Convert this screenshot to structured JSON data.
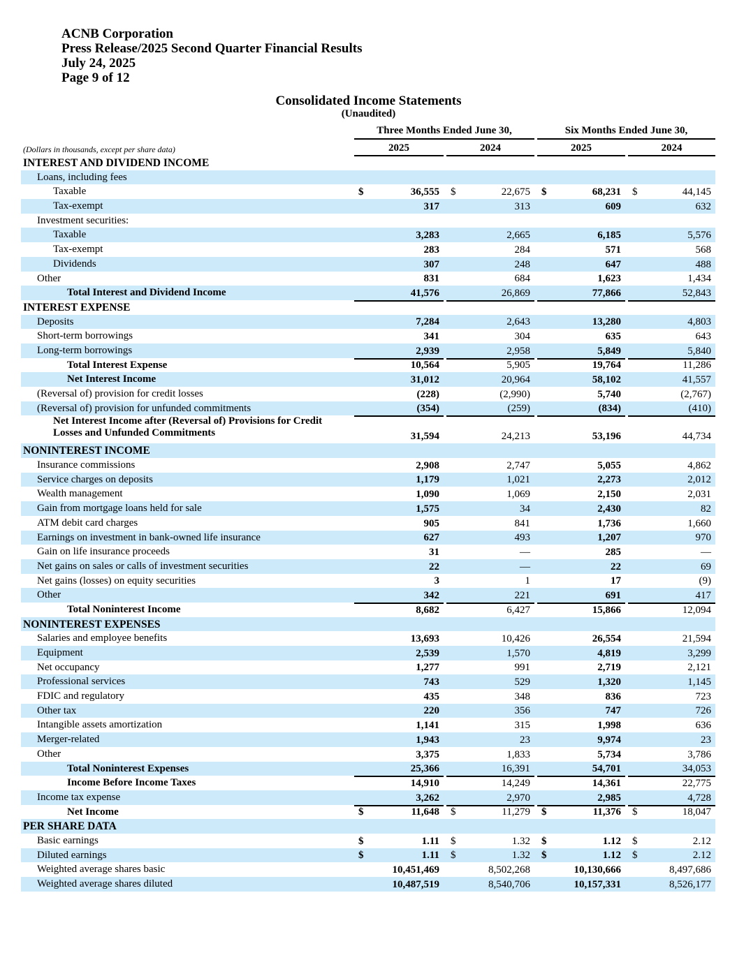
{
  "header": {
    "company": "ACNB Corporation",
    "release": "Press Release/2025 Second Quarter Financial Results",
    "date": "July 24, 2025",
    "page": "Page 9 of 12"
  },
  "statement": {
    "title": "Consolidated Income Statements",
    "subtitle": "(Unaudited)",
    "note": "(Dollars in thousands, except per share data)",
    "periods": [
      "Three Months Ended June 30,",
      "Six Months Ended June 30,"
    ],
    "years": [
      "2025",
      "2024",
      "2025",
      "2024"
    ],
    "currency_symbol": "$"
  },
  "rows": [
    {
      "label": "INTEREST AND DIVIDEND INCOME",
      "type": "header",
      "indent": 0,
      "values": [
        "",
        "",
        "",
        ""
      ]
    },
    {
      "label": "Loans, including fees",
      "type": "item",
      "indent": 1,
      "values": [
        "",
        "",
        "",
        ""
      ]
    },
    {
      "label": "Taxable",
      "type": "item",
      "indent": 2,
      "values": [
        "36,555",
        "22,675",
        "68,231",
        "44,145"
      ],
      "dollar": true
    },
    {
      "label": "Tax-exempt",
      "type": "item",
      "indent": 2,
      "values": [
        "317",
        "313",
        "609",
        "632"
      ]
    },
    {
      "label": "Investment securities:",
      "type": "item",
      "indent": 1,
      "values": [
        "",
        "",
        "",
        ""
      ]
    },
    {
      "label": "Taxable",
      "type": "item",
      "indent": 2,
      "values": [
        "3,283",
        "2,665",
        "6,185",
        "5,576"
      ]
    },
    {
      "label": "Tax-exempt",
      "type": "item",
      "indent": 2,
      "values": [
        "283",
        "284",
        "571",
        "568"
      ]
    },
    {
      "label": "Dividends",
      "type": "item",
      "indent": 2,
      "values": [
        "307",
        "248",
        "647",
        "488"
      ]
    },
    {
      "label": "Other",
      "type": "item",
      "indent": 1,
      "values": [
        "831",
        "684",
        "1,623",
        "1,434"
      ]
    },
    {
      "label": "Total Interest and Dividend Income",
      "type": "total",
      "indent": 3,
      "values": [
        "41,576",
        "26,869",
        "77,866",
        "52,843"
      ]
    },
    {
      "label": "INTEREST EXPENSE",
      "type": "header",
      "indent": 0,
      "values": [
        "",
        "",
        "",
        ""
      ]
    },
    {
      "label": "Deposits",
      "type": "item",
      "indent": 1,
      "values": [
        "7,284",
        "2,643",
        "13,280",
        "4,803"
      ]
    },
    {
      "label": "Short-term borrowings",
      "type": "item",
      "indent": 1,
      "values": [
        "341",
        "304",
        "635",
        "643"
      ]
    },
    {
      "label": "Long-term borrowings",
      "type": "item",
      "indent": 1,
      "values": [
        "2,939",
        "2,958",
        "5,849",
        "5,840"
      ]
    },
    {
      "label": "Total Interest Expense",
      "type": "total",
      "indent": 3,
      "values": [
        "10,564",
        "5,905",
        "19,764",
        "11,286"
      ]
    },
    {
      "label": "Net Interest Income",
      "type": "total",
      "indent": 3,
      "values": [
        "31,012",
        "20,964",
        "58,102",
        "41,557"
      ]
    },
    {
      "label": "(Reversal of) provision for credit losses",
      "type": "item",
      "indent": 1,
      "values": [
        "(228)",
        "(2,990)",
        "5,740",
        "(2,767)"
      ]
    },
    {
      "label": "(Reversal of) provision for unfunded commitments",
      "type": "item",
      "indent": 1,
      "values": [
        "(354)",
        "(259)",
        "(834)",
        "(410)"
      ]
    },
    {
      "label": "Net Interest Income after (Reversal of) Provisions for Credit\nLosses and Unfunded Commitments",
      "type": "total",
      "indent": 2,
      "values": [
        "31,594",
        "24,213",
        "53,196",
        "44,734"
      ]
    },
    {
      "label": "NONINTEREST INCOME",
      "type": "header",
      "indent": 0,
      "values": [
        "",
        "",
        "",
        ""
      ]
    },
    {
      "label": "Insurance commissions",
      "type": "item",
      "indent": 1,
      "values": [
        "2,908",
        "2,747",
        "5,055",
        "4,862"
      ]
    },
    {
      "label": "Service charges on deposits",
      "type": "item",
      "indent": 1,
      "values": [
        "1,179",
        "1,021",
        "2,273",
        "2,012"
      ]
    },
    {
      "label": "Wealth management",
      "type": "item",
      "indent": 1,
      "values": [
        "1,090",
        "1,069",
        "2,150",
        "2,031"
      ]
    },
    {
      "label": "Gain from mortgage loans held for sale",
      "type": "item",
      "indent": 1,
      "values": [
        "1,575",
        "34",
        "2,430",
        "82"
      ]
    },
    {
      "label": "ATM debit card charges",
      "type": "item",
      "indent": 1,
      "values": [
        "905",
        "841",
        "1,736",
        "1,660"
      ]
    },
    {
      "label": "Earnings on investment in bank-owned life insurance",
      "type": "item",
      "indent": 1,
      "values": [
        "627",
        "493",
        "1,207",
        "970"
      ]
    },
    {
      "label": "Gain on life insurance proceeds",
      "type": "item",
      "indent": 1,
      "values": [
        "31",
        "—",
        "285",
        "—"
      ]
    },
    {
      "label": "Net gains on sales or calls of investment securities",
      "type": "item",
      "indent": 1,
      "values": [
        "22",
        "—",
        "22",
        "69"
      ]
    },
    {
      "label": "Net gains (losses) on equity securities",
      "type": "item",
      "indent": 1,
      "values": [
        "3",
        "1",
        "17",
        "(9)"
      ]
    },
    {
      "label": "Other",
      "type": "item",
      "indent": 1,
      "values": [
        "342",
        "221",
        "691",
        "417"
      ]
    },
    {
      "label": "Total Noninterest Income",
      "type": "total",
      "indent": 3,
      "values": [
        "8,682",
        "6,427",
        "15,866",
        "12,094"
      ]
    },
    {
      "label": "NONINTEREST EXPENSES",
      "type": "header",
      "indent": 0,
      "values": [
        "",
        "",
        "",
        ""
      ]
    },
    {
      "label": "Salaries and employee benefits",
      "type": "item",
      "indent": 1,
      "values": [
        "13,693",
        "10,426",
        "26,554",
        "21,594"
      ]
    },
    {
      "label": "Equipment",
      "type": "item",
      "indent": 1,
      "values": [
        "2,539",
        "1,570",
        "4,819",
        "3,299"
      ]
    },
    {
      "label": "Net occupancy",
      "type": "item",
      "indent": 1,
      "values": [
        "1,277",
        "991",
        "2,719",
        "2,121"
      ]
    },
    {
      "label": "Professional services",
      "type": "item",
      "indent": 1,
      "values": [
        "743",
        "529",
        "1,320",
        "1,145"
      ]
    },
    {
      "label": "FDIC and regulatory",
      "type": "item",
      "indent": 1,
      "values": [
        "435",
        "348",
        "836",
        "723"
      ]
    },
    {
      "label": "Other tax",
      "type": "item",
      "indent": 1,
      "values": [
        "220",
        "356",
        "747",
        "726"
      ]
    },
    {
      "label": "Intangible assets amortization",
      "type": "item",
      "indent": 1,
      "values": [
        "1,141",
        "315",
        "1,998",
        "636"
      ]
    },
    {
      "label": "Merger-related",
      "type": "item",
      "indent": 1,
      "values": [
        "1,943",
        "23",
        "9,974",
        "23"
      ]
    },
    {
      "label": "Other",
      "type": "item",
      "indent": 1,
      "values": [
        "3,375",
        "1,833",
        "5,734",
        "3,786"
      ]
    },
    {
      "label": "Total Noninterest Expenses",
      "type": "total",
      "indent": 3,
      "values": [
        "25,366",
        "16,391",
        "54,701",
        "34,053"
      ]
    },
    {
      "label": "Income Before Income Taxes",
      "type": "total",
      "indent": 3,
      "values": [
        "14,910",
        "14,249",
        "14,361",
        "22,775"
      ]
    },
    {
      "label": "Income tax expense",
      "type": "item",
      "indent": 1,
      "values": [
        "3,262",
        "2,970",
        "2,985",
        "4,728"
      ]
    },
    {
      "label": "Net Income",
      "type": "total",
      "indent": 3,
      "values": [
        "11,648",
        "11,279",
        "11,376",
        "18,047"
      ],
      "dollar": true
    },
    {
      "label": "PER SHARE DATA",
      "type": "header",
      "indent": 0,
      "values": [
        "",
        "",
        "",
        ""
      ]
    },
    {
      "label": "Basic earnings",
      "type": "item",
      "indent": 1,
      "values": [
        "1.11",
        "1.32",
        "1.12",
        "2.12"
      ],
      "dollar": true
    },
    {
      "label": "Diluted earnings",
      "type": "item",
      "indent": 1,
      "values": [
        "1.11",
        "1.32",
        "1.12",
        "2.12"
      ],
      "dollar": true
    },
    {
      "label": "Weighted average shares basic",
      "type": "item",
      "indent": 1,
      "values": [
        "10,451,469",
        "8,502,268",
        "10,130,666",
        "8,497,686"
      ]
    },
    {
      "label": "Weighted average shares diluted",
      "type": "item",
      "indent": 1,
      "values": [
        "10,487,519",
        "8,540,706",
        "10,157,331",
        "8,526,177"
      ]
    }
  ],
  "colors": {
    "row_shade": "#cdeafb"
  }
}
